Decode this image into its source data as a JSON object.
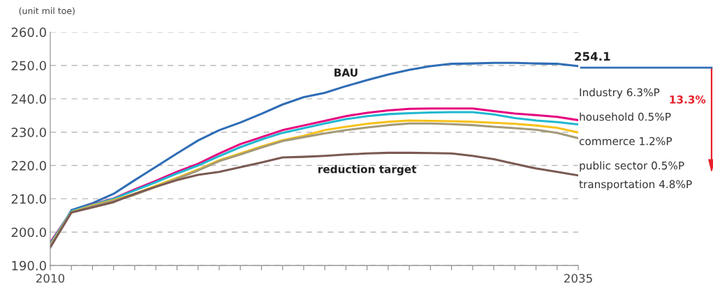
{
  "chart_data": {
    "type": "line",
    "ylabel": "(unit mil toe)",
    "x": [
      2010,
      2011,
      2012,
      2013,
      2014,
      2015,
      2016,
      2017,
      2018,
      2019,
      2020,
      2021,
      2022,
      2023,
      2024,
      2025,
      2026,
      2027,
      2028,
      2029,
      2030,
      2031,
      2032,
      2033,
      2034,
      2035
    ],
    "series": [
      {
        "name": "BAU",
        "color": "#2f6db5",
        "values": [
          195.5,
          206.6,
          208.7,
          211.5,
          215.6,
          219.6,
          223.6,
          227.5,
          230.6,
          232.9,
          235.5,
          238.3,
          240.5,
          241.8,
          243.8,
          245.6,
          247.3,
          248.7,
          249.8,
          250.5,
          250.6,
          250.8,
          250.8,
          250.6,
          250.5,
          249.8
        ]
      },
      {
        "color": "#e6007e",
        "values": [
          196.9,
          206.2,
          208.3,
          210.1,
          212.8,
          215.4,
          218.1,
          220.5,
          223.6,
          226.4,
          228.5,
          230.6,
          232.0,
          233.4,
          234.8,
          235.8,
          236.5,
          237.0,
          237.1,
          237.1,
          237.1,
          236.3,
          235.6,
          235.1,
          234.6,
          233.6
        ]
      },
      {
        "color": "#1fb8d0",
        "values": [
          196.5,
          206.3,
          208.2,
          210.0,
          212.5,
          215.0,
          217.6,
          220.0,
          222.8,
          225.5,
          227.8,
          229.8,
          231.2,
          232.6,
          233.9,
          234.8,
          235.4,
          235.7,
          235.9,
          236.0,
          236.0,
          235.3,
          234.2,
          233.5,
          233.0,
          232.3
        ]
      },
      {
        "color": "#f7c21b",
        "values": [
          196.0,
          206.0,
          208.0,
          209.6,
          211.5,
          213.9,
          216.3,
          218.8,
          221.6,
          223.6,
          225.7,
          227.6,
          228.9,
          230.6,
          231.6,
          232.5,
          233.1,
          233.5,
          233.4,
          233.3,
          233.1,
          232.8,
          232.5,
          232.0,
          231.3,
          229.9
        ]
      },
      {
        "color": "#a49a78",
        "values": [
          195.8,
          205.9,
          207.8,
          209.4,
          211.2,
          213.6,
          216.0,
          218.5,
          221.3,
          223.3,
          225.4,
          227.3,
          228.5,
          229.6,
          230.6,
          231.4,
          232.1,
          232.6,
          232.6,
          232.4,
          232.1,
          231.6,
          231.2,
          230.7,
          229.8,
          228.2
        ]
      },
      {
        "name": "reduction target",
        "color": "#7b5a52",
        "values": [
          195.4,
          205.9,
          207.4,
          209.0,
          211.5,
          213.6,
          215.6,
          217.2,
          218.1,
          219.5,
          220.9,
          222.4,
          222.6,
          222.9,
          223.3,
          223.6,
          223.8,
          223.8,
          223.7,
          223.6,
          222.9,
          221.9,
          220.5,
          219.1,
          218.1,
          217.0
        ]
      }
    ],
    "xlim": [
      2010,
      2035
    ],
    "xticks": [
      2010,
      {
        "value": 2011,
        "label": null
      },
      {
        "value": 2012,
        "label": null
      },
      {
        "value": 2013,
        "label": null
      },
      {
        "value": 2014,
        "label": null
      },
      {
        "value": 2015,
        "label": null
      },
      {
        "value": 2016,
        "label": null
      },
      {
        "value": 2017,
        "label": null
      },
      {
        "value": 2018,
        "label": null
      },
      {
        "value": 2019,
        "label": null
      },
      {
        "value": 2020,
        "label": null
      },
      {
        "value": 2021,
        "label": null
      },
      {
        "value": 2022,
        "label": null
      },
      {
        "value": 2023,
        "label": null
      },
      {
        "value": 2024,
        "label": null
      },
      {
        "value": 2025,
        "label": null
      },
      {
        "value": 2026,
        "label": null
      },
      {
        "value": 2027,
        "label": null
      },
      {
        "value": 2028,
        "label": null
      },
      {
        "value": 2029,
        "label": null
      },
      {
        "value": 2030,
        "label": null
      },
      {
        "value": 2031,
        "label": null
      },
      {
        "value": 2032,
        "label": null
      },
      {
        "value": 2033,
        "label": null
      },
      {
        "value": 2034,
        "label": null
      },
      2035
    ],
    "ylim": [
      190,
      260
    ],
    "yticks": [
      {
        "value": 190,
        "label": "190.0"
      },
      {
        "value": 200,
        "label": "200.0"
      },
      {
        "value": 210,
        "label": "210.0"
      },
      {
        "value": 220,
        "label": "220.0"
      },
      {
        "value": 230,
        "label": "230.0"
      },
      {
        "value": 240,
        "label": "240.0"
      },
      {
        "value": 250,
        "label": "250.0"
      },
      {
        "value": 260,
        "label": "260.0"
      }
    ],
    "grid": "y",
    "legend": false,
    "marker": "none",
    "line_style": "solid",
    "annotations": [
      "254.1",
      "Industry 6.3%P",
      "household 0.5%P",
      "commerce 1.2%P",
      "public sector 0.5%P",
      "transportation 4.8%P",
      "13.3%"
    ]
  }
}
